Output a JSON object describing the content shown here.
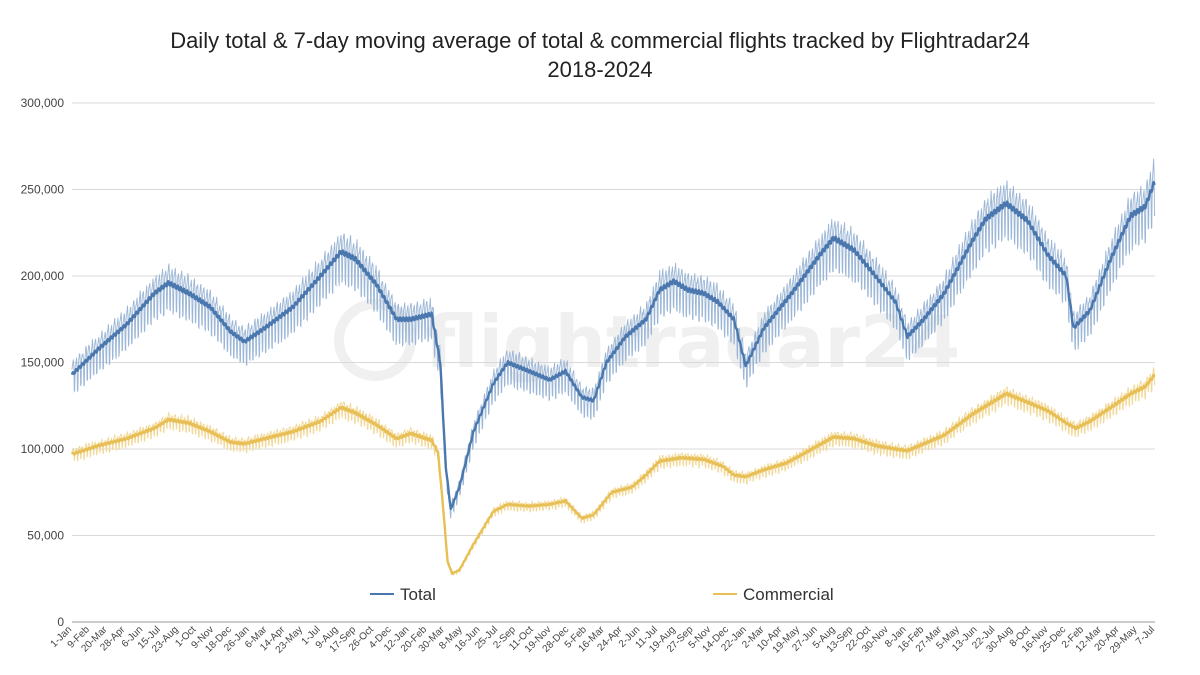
{
  "chart_data": {
    "type": "line",
    "title": "Daily total & 7-day moving average of total & commercial flights tracked by Flightradar24",
    "subtitle": "2018-2024",
    "xlabel": "",
    "ylabel": "",
    "ylim": [
      0,
      300000
    ],
    "y_ticks": [
      "0",
      "50,000",
      "100,000",
      "150,000",
      "200,000",
      "250,000",
      "300,000"
    ],
    "y_tick_values": [
      0,
      50000,
      100000,
      150000,
      200000,
      250000,
      300000
    ],
    "x_ticks": [
      "1-Jan",
      "9-Feb",
      "20-Mar",
      "28-Apr",
      "6-Jun",
      "15-Jul",
      "23-Aug",
      "1-Oct",
      "9-Nov",
      "18-Dec",
      "26-Jan",
      "6-Mar",
      "14-Apr",
      "23-May",
      "1-Jul",
      "9-Aug",
      "17-Sep",
      "26-Oct",
      "4-Dec",
      "12-Jan",
      "20-Feb",
      "30-Mar",
      "8-May",
      "16-Jun",
      "25-Jul",
      "2-Sep",
      "11-Oct",
      "19-Nov",
      "28-Dec",
      "5-Feb",
      "16-Mar",
      "24-Apr",
      "2-Jun",
      "11-Jul",
      "19-Aug",
      "27-Sep",
      "5-Nov",
      "14-Dec",
      "22-Jan",
      "2-Mar",
      "10-Apr",
      "19-May",
      "27-Jun",
      "5-Aug",
      "13-Sep",
      "22-Oct",
      "30-Nov",
      "8-Jan",
      "16-Feb",
      "27-Mar",
      "5-May",
      "13-Jun",
      "22-Jul",
      "30-Aug",
      "8-Oct",
      "16-Nov",
      "25-Dec",
      "2-Feb",
      "12-Mar",
      "20-Apr",
      "29-May",
      "7-Jul"
    ],
    "grid": true,
    "legend_position": "bottom",
    "x_start": "2018-01-01",
    "x_end": "2024-07-07",
    "series": [
      {
        "name": "Total",
        "color": "#4a77ad",
        "daily_color": "#9bb6d6",
        "keyframes": [
          [
            "2018-01-01",
            143000
          ],
          [
            "2018-03-01",
            158000
          ],
          [
            "2018-05-01",
            172000
          ],
          [
            "2018-07-01",
            190000
          ],
          [
            "2018-08-01",
            196000
          ],
          [
            "2018-09-15",
            190000
          ],
          [
            "2018-11-01",
            182000
          ],
          [
            "2018-12-15",
            168000
          ],
          [
            "2019-01-15",
            162000
          ],
          [
            "2019-03-01",
            170000
          ],
          [
            "2019-05-01",
            182000
          ],
          [
            "2019-07-01",
            200000
          ],
          [
            "2019-08-15",
            214000
          ],
          [
            "2019-09-15",
            210000
          ],
          [
            "2019-11-01",
            195000
          ],
          [
            "2019-12-15",
            175000
          ],
          [
            "2020-01-15",
            175000
          ],
          [
            "2020-03-01",
            178000
          ],
          [
            "2020-03-20",
            150000
          ],
          [
            "2020-04-01",
            90000
          ],
          [
            "2020-04-12",
            65000
          ],
          [
            "2020-05-01",
            78000
          ],
          [
            "2020-06-01",
            110000
          ],
          [
            "2020-07-15",
            138000
          ],
          [
            "2020-08-15",
            150000
          ],
          [
            "2020-10-01",
            145000
          ],
          [
            "2020-11-15",
            140000
          ],
          [
            "2020-12-20",
            145000
          ],
          [
            "2021-01-25",
            130000
          ],
          [
            "2021-02-20",
            128000
          ],
          [
            "2021-03-20",
            150000
          ],
          [
            "2021-05-01",
            165000
          ],
          [
            "2021-06-15",
            175000
          ],
          [
            "2021-07-15",
            192000
          ],
          [
            "2021-08-15",
            197000
          ],
          [
            "2021-09-15",
            192000
          ],
          [
            "2021-10-20",
            190000
          ],
          [
            "2021-11-20",
            185000
          ],
          [
            "2021-12-25",
            175000
          ],
          [
            "2022-01-20",
            148000
          ],
          [
            "2022-03-01",
            170000
          ],
          [
            "2022-05-01",
            190000
          ],
          [
            "2022-07-01",
            212000
          ],
          [
            "2022-08-01",
            222000
          ],
          [
            "2022-09-15",
            215000
          ],
          [
            "2022-11-01",
            200000
          ],
          [
            "2022-12-15",
            185000
          ],
          [
            "2023-01-10",
            165000
          ],
          [
            "2023-02-15",
            175000
          ],
          [
            "2023-04-01",
            190000
          ],
          [
            "2023-06-01",
            220000
          ],
          [
            "2023-07-01",
            233000
          ],
          [
            "2023-08-15",
            242000
          ],
          [
            "2023-10-01",
            232000
          ],
          [
            "2023-11-15",
            212000
          ],
          [
            "2023-12-25",
            200000
          ],
          [
            "2024-01-10",
            170000
          ],
          [
            "2024-02-15",
            180000
          ],
          [
            "2024-04-01",
            210000
          ],
          [
            "2024-05-15",
            235000
          ],
          [
            "2024-06-15",
            240000
          ],
          [
            "2024-07-07",
            255000
          ]
        ]
      },
      {
        "name": "Commercial",
        "color": "#e8bf55",
        "daily_color": "#f2d896",
        "keyframes": [
          [
            "2018-01-01",
            97000
          ],
          [
            "2018-03-01",
            102000
          ],
          [
            "2018-05-01",
            106000
          ],
          [
            "2018-07-01",
            112000
          ],
          [
            "2018-08-01",
            117000
          ],
          [
            "2018-09-15",
            115000
          ],
          [
            "2018-11-01",
            110000
          ],
          [
            "2018-12-15",
            104000
          ],
          [
            "2019-01-15",
            103000
          ],
          [
            "2019-03-01",
            106000
          ],
          [
            "2019-05-01",
            110000
          ],
          [
            "2019-07-01",
            116000
          ],
          [
            "2019-08-15",
            124000
          ],
          [
            "2019-09-15",
            121000
          ],
          [
            "2019-11-01",
            114000
          ],
          [
            "2019-12-15",
            106000
          ],
          [
            "2020-01-15",
            109000
          ],
          [
            "2020-03-01",
            105000
          ],
          [
            "2020-03-15",
            98000
          ],
          [
            "2020-03-25",
            70000
          ],
          [
            "2020-04-05",
            35000
          ],
          [
            "2020-04-15",
            28000
          ],
          [
            "2020-05-01",
            30000
          ],
          [
            "2020-06-01",
            45000
          ],
          [
            "2020-07-15",
            64000
          ],
          [
            "2020-08-15",
            68000
          ],
          [
            "2020-10-01",
            67000
          ],
          [
            "2020-11-15",
            68000
          ],
          [
            "2020-12-20",
            70000
          ],
          [
            "2021-01-25",
            60000
          ],
          [
            "2021-02-20",
            62000
          ],
          [
            "2021-04-01",
            75000
          ],
          [
            "2021-05-15",
            78000
          ],
          [
            "2021-06-15",
            85000
          ],
          [
            "2021-07-15",
            93000
          ],
          [
            "2021-09-01",
            95000
          ],
          [
            "2021-10-20",
            94000
          ],
          [
            "2021-12-01",
            90000
          ],
          [
            "2021-12-25",
            85000
          ],
          [
            "2022-01-20",
            84000
          ],
          [
            "2022-03-01",
            88000
          ],
          [
            "2022-04-20",
            92000
          ],
          [
            "2022-06-01",
            98000
          ],
          [
            "2022-08-01",
            107000
          ],
          [
            "2022-09-15",
            106000
          ],
          [
            "2022-11-01",
            102000
          ],
          [
            "2022-12-15",
            100000
          ],
          [
            "2023-01-10",
            99000
          ],
          [
            "2023-02-15",
            103000
          ],
          [
            "2023-04-01",
            108000
          ],
          [
            "2023-06-01",
            120000
          ],
          [
            "2023-07-15",
            127000
          ],
          [
            "2023-08-15",
            132000
          ],
          [
            "2023-10-01",
            127000
          ],
          [
            "2023-11-15",
            122000
          ],
          [
            "2023-12-25",
            115000
          ],
          [
            "2024-01-15",
            112000
          ],
          [
            "2024-02-15",
            116000
          ],
          [
            "2024-04-01",
            124000
          ],
          [
            "2024-05-15",
            132000
          ],
          [
            "2024-06-15",
            136000
          ],
          [
            "2024-07-07",
            143000
          ]
        ]
      }
    ]
  },
  "watermark": "flightradar24"
}
